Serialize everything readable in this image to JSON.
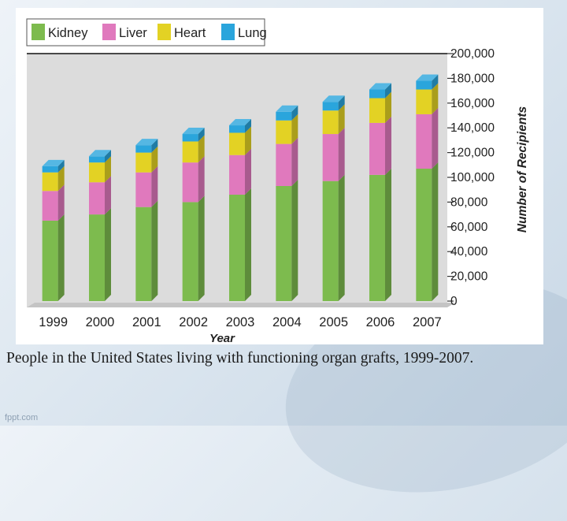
{
  "chart_data": {
    "type": "bar",
    "stacked": true,
    "categories": [
      "1999",
      "2000",
      "2001",
      "2002",
      "2003",
      "2004",
      "2005",
      "2006",
      "2007"
    ],
    "series": [
      {
        "name": "Kidney",
        "color": "#7dbb4e",
        "values": [
          65000,
          70000,
          76000,
          80000,
          86000,
          93000,
          97000,
          102000,
          107000
        ]
      },
      {
        "name": "Liver",
        "color": "#e079bd",
        "values": [
          24000,
          26000,
          28000,
          32000,
          32000,
          34000,
          38000,
          42000,
          44000
        ]
      },
      {
        "name": "Heart",
        "color": "#e3d224",
        "values": [
          15000,
          16000,
          16000,
          17000,
          18000,
          19000,
          19000,
          20000,
          20000
        ]
      },
      {
        "name": "Lung",
        "color": "#2aa5dc",
        "values": [
          5000,
          5000,
          6000,
          6000,
          6000,
          7000,
          7000,
          7000,
          7000
        ]
      }
    ],
    "xlabel": "Year",
    "ylabel": "Number of Recipients",
    "ylim": [
      0,
      200000
    ],
    "yticks": [
      "0",
      "20,000",
      "40,000",
      "60,000",
      "80,000",
      "100,000",
      "120,000",
      "140,000",
      "160,000",
      "180,000",
      "200,000"
    ],
    "legend_position": "top-left",
    "grid": false
  },
  "caption": "People in the United States living with functioning organ grafts, 1999-2007.",
  "watermark": "fppt.com"
}
